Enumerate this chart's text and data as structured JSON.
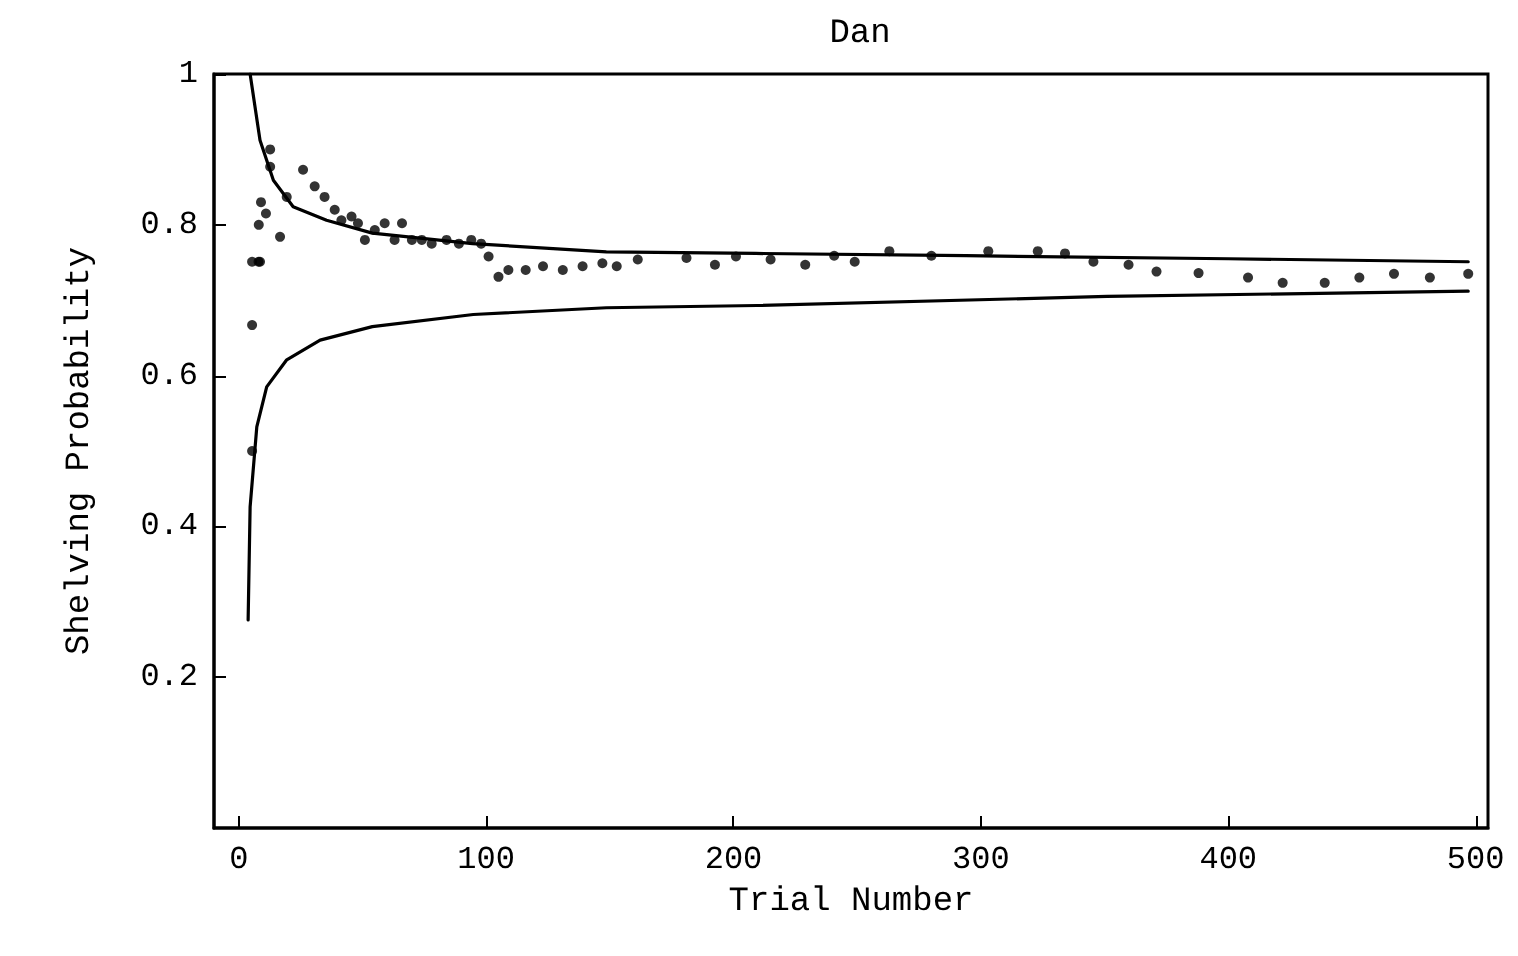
{
  "chart_data": {
    "type": "line",
    "title": "Dan",
    "xlabel": "Trial Number",
    "ylabel": "Shelving Probability",
    "xlim": [
      -10,
      505
    ],
    "xticks": [
      0,
      100,
      200,
      300,
      400,
      500
    ],
    "ylim": [
      0,
      1
    ],
    "yticks": [
      0.2,
      0.4,
      0.6,
      0.8,
      1
    ],
    "series": [
      {
        "color": "#000000",
        "marker": "none",
        "x": [
          4.6,
          8.6,
          14,
          22,
          35.5,
          54,
          94.5,
          148.6,
          209,
          294,
          400,
          497
        ],
        "values": [
          1.0,
          0.912,
          0.859,
          0.824,
          0.806,
          0.789,
          0.775,
          0.764,
          0.762,
          0.759,
          0.755,
          0.751
        ]
      },
      {
        "color": "#000000",
        "marker": "none",
        "x": [
          3.8,
          4.6,
          7.3,
          11.3,
          19.4,
          32.9,
          54,
          94.8,
          148.6,
          209.5,
          351,
          497
        ],
        "values": [
          0.276,
          0.426,
          0.532,
          0.585,
          0.621,
          0.647,
          0.665,
          0.681,
          0.69,
          0.693,
          0.705,
          0.712
        ]
      },
      {
        "type": "scatter",
        "color": "#000000",
        "marker": "circle",
        "x": [
          5.4,
          5.4,
          5.4,
          8,
          8.6,
          8.1,
          9,
          11,
          12.7,
          12.7,
          16.7,
          19.4,
          26,
          30.7,
          34.7,
          38.8,
          41.5,
          45.6,
          48.2,
          51,
          55,
          59,
          63,
          66,
          70,
          74,
          78,
          84,
          89,
          94,
          98,
          101,
          105,
          109,
          116,
          123,
          131,
          139,
          147,
          152.8,
          161.3,
          181,
          192.5,
          201,
          215,
          229,
          240.7,
          249,
          263,
          280,
          303,
          323,
          334,
          345.5,
          359.7,
          371,
          388,
          408,
          422,
          439,
          453,
          467,
          481.5,
          497
        ],
        "values": [
          0.5,
          0.667,
          0.751,
          0.751,
          0.751,
          0.8,
          0.83,
          0.815,
          0.877,
          0.9,
          0.784,
          0.837,
          0.873,
          0.851,
          0.837,
          0.82,
          0.806,
          0.811,
          0.802,
          0.78,
          0.793,
          0.802,
          0.78,
          0.802,
          0.78,
          0.78,
          0.775,
          0.78,
          0.775,
          0.78,
          0.775,
          0.758,
          0.731,
          0.74,
          0.74,
          0.745,
          0.74,
          0.745,
          0.749,
          0.745,
          0.754,
          0.756,
          0.747,
          0.758,
          0.754,
          0.747,
          0.759,
          0.751,
          0.765,
          0.759,
          0.765,
          0.765,
          0.762,
          0.751,
          0.747,
          0.738,
          0.736,
          0.73,
          0.723,
          0.723,
          0.73,
          0.735,
          0.73,
          0.735
        ]
      }
    ]
  }
}
